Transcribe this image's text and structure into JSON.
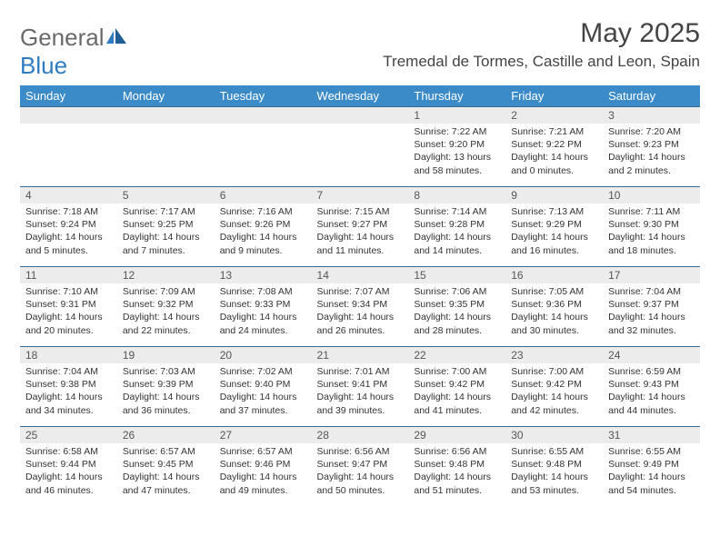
{
  "logo": {
    "word1": "General",
    "word2": "Blue"
  },
  "title": "May 2025",
  "location": "Tremedal de Tormes, Castille and Leon, Spain",
  "header_bg": "#3b8bc8",
  "header_fg": "#ffffff",
  "divider_color": "#3b6a8f",
  "daynum_bg": "#ececec",
  "weekdays": [
    "Sunday",
    "Monday",
    "Tuesday",
    "Wednesday",
    "Thursday",
    "Friday",
    "Saturday"
  ],
  "weeks": [
    [
      {
        "n": "",
        "sr": "",
        "ss": "",
        "dl": ""
      },
      {
        "n": "",
        "sr": "",
        "ss": "",
        "dl": ""
      },
      {
        "n": "",
        "sr": "",
        "ss": "",
        "dl": ""
      },
      {
        "n": "",
        "sr": "",
        "ss": "",
        "dl": ""
      },
      {
        "n": "1",
        "sr": "Sunrise: 7:22 AM",
        "ss": "Sunset: 9:20 PM",
        "dl": "Daylight: 13 hours and 58 minutes."
      },
      {
        "n": "2",
        "sr": "Sunrise: 7:21 AM",
        "ss": "Sunset: 9:22 PM",
        "dl": "Daylight: 14 hours and 0 minutes."
      },
      {
        "n": "3",
        "sr": "Sunrise: 7:20 AM",
        "ss": "Sunset: 9:23 PM",
        "dl": "Daylight: 14 hours and 2 minutes."
      }
    ],
    [
      {
        "n": "4",
        "sr": "Sunrise: 7:18 AM",
        "ss": "Sunset: 9:24 PM",
        "dl": "Daylight: 14 hours and 5 minutes."
      },
      {
        "n": "5",
        "sr": "Sunrise: 7:17 AM",
        "ss": "Sunset: 9:25 PM",
        "dl": "Daylight: 14 hours and 7 minutes."
      },
      {
        "n": "6",
        "sr": "Sunrise: 7:16 AM",
        "ss": "Sunset: 9:26 PM",
        "dl": "Daylight: 14 hours and 9 minutes."
      },
      {
        "n": "7",
        "sr": "Sunrise: 7:15 AM",
        "ss": "Sunset: 9:27 PM",
        "dl": "Daylight: 14 hours and 11 minutes."
      },
      {
        "n": "8",
        "sr": "Sunrise: 7:14 AM",
        "ss": "Sunset: 9:28 PM",
        "dl": "Daylight: 14 hours and 14 minutes."
      },
      {
        "n": "9",
        "sr": "Sunrise: 7:13 AM",
        "ss": "Sunset: 9:29 PM",
        "dl": "Daylight: 14 hours and 16 minutes."
      },
      {
        "n": "10",
        "sr": "Sunrise: 7:11 AM",
        "ss": "Sunset: 9:30 PM",
        "dl": "Daylight: 14 hours and 18 minutes."
      }
    ],
    [
      {
        "n": "11",
        "sr": "Sunrise: 7:10 AM",
        "ss": "Sunset: 9:31 PM",
        "dl": "Daylight: 14 hours and 20 minutes."
      },
      {
        "n": "12",
        "sr": "Sunrise: 7:09 AM",
        "ss": "Sunset: 9:32 PM",
        "dl": "Daylight: 14 hours and 22 minutes."
      },
      {
        "n": "13",
        "sr": "Sunrise: 7:08 AM",
        "ss": "Sunset: 9:33 PM",
        "dl": "Daylight: 14 hours and 24 minutes."
      },
      {
        "n": "14",
        "sr": "Sunrise: 7:07 AM",
        "ss": "Sunset: 9:34 PM",
        "dl": "Daylight: 14 hours and 26 minutes."
      },
      {
        "n": "15",
        "sr": "Sunrise: 7:06 AM",
        "ss": "Sunset: 9:35 PM",
        "dl": "Daylight: 14 hours and 28 minutes."
      },
      {
        "n": "16",
        "sr": "Sunrise: 7:05 AM",
        "ss": "Sunset: 9:36 PM",
        "dl": "Daylight: 14 hours and 30 minutes."
      },
      {
        "n": "17",
        "sr": "Sunrise: 7:04 AM",
        "ss": "Sunset: 9:37 PM",
        "dl": "Daylight: 14 hours and 32 minutes."
      }
    ],
    [
      {
        "n": "18",
        "sr": "Sunrise: 7:04 AM",
        "ss": "Sunset: 9:38 PM",
        "dl": "Daylight: 14 hours and 34 minutes."
      },
      {
        "n": "19",
        "sr": "Sunrise: 7:03 AM",
        "ss": "Sunset: 9:39 PM",
        "dl": "Daylight: 14 hours and 36 minutes."
      },
      {
        "n": "20",
        "sr": "Sunrise: 7:02 AM",
        "ss": "Sunset: 9:40 PM",
        "dl": "Daylight: 14 hours and 37 minutes."
      },
      {
        "n": "21",
        "sr": "Sunrise: 7:01 AM",
        "ss": "Sunset: 9:41 PM",
        "dl": "Daylight: 14 hours and 39 minutes."
      },
      {
        "n": "22",
        "sr": "Sunrise: 7:00 AM",
        "ss": "Sunset: 9:42 PM",
        "dl": "Daylight: 14 hours and 41 minutes."
      },
      {
        "n": "23",
        "sr": "Sunrise: 7:00 AM",
        "ss": "Sunset: 9:42 PM",
        "dl": "Daylight: 14 hours and 42 minutes."
      },
      {
        "n": "24",
        "sr": "Sunrise: 6:59 AM",
        "ss": "Sunset: 9:43 PM",
        "dl": "Daylight: 14 hours and 44 minutes."
      }
    ],
    [
      {
        "n": "25",
        "sr": "Sunrise: 6:58 AM",
        "ss": "Sunset: 9:44 PM",
        "dl": "Daylight: 14 hours and 46 minutes."
      },
      {
        "n": "26",
        "sr": "Sunrise: 6:57 AM",
        "ss": "Sunset: 9:45 PM",
        "dl": "Daylight: 14 hours and 47 minutes."
      },
      {
        "n": "27",
        "sr": "Sunrise: 6:57 AM",
        "ss": "Sunset: 9:46 PM",
        "dl": "Daylight: 14 hours and 49 minutes."
      },
      {
        "n": "28",
        "sr": "Sunrise: 6:56 AM",
        "ss": "Sunset: 9:47 PM",
        "dl": "Daylight: 14 hours and 50 minutes."
      },
      {
        "n": "29",
        "sr": "Sunrise: 6:56 AM",
        "ss": "Sunset: 9:48 PM",
        "dl": "Daylight: 14 hours and 51 minutes."
      },
      {
        "n": "30",
        "sr": "Sunrise: 6:55 AM",
        "ss": "Sunset: 9:48 PM",
        "dl": "Daylight: 14 hours and 53 minutes."
      },
      {
        "n": "31",
        "sr": "Sunrise: 6:55 AM",
        "ss": "Sunset: 9:49 PM",
        "dl": "Daylight: 14 hours and 54 minutes."
      }
    ]
  ]
}
